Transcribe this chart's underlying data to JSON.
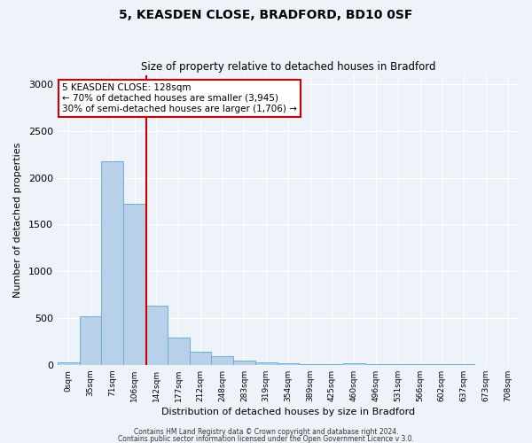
{
  "title_line1": "5, KEASDEN CLOSE, BRADFORD, BD10 0SF",
  "title_line2": "Size of property relative to detached houses in Bradford",
  "xlabel": "Distribution of detached houses by size in Bradford",
  "ylabel": "Number of detached properties",
  "bar_labels": [
    "0sqm",
    "35sqm",
    "71sqm",
    "106sqm",
    "142sqm",
    "177sqm",
    "212sqm",
    "248sqm",
    "283sqm",
    "319sqm",
    "354sqm",
    "389sqm",
    "425sqm",
    "460sqm",
    "496sqm",
    "531sqm",
    "566sqm",
    "602sqm",
    "637sqm",
    "673sqm",
    "708sqm"
  ],
  "bar_values": [
    30,
    520,
    2180,
    1720,
    630,
    290,
    145,
    90,
    50,
    25,
    15,
    10,
    8,
    15,
    5,
    5,
    5,
    5,
    5,
    0,
    0
  ],
  "bar_color": "#b8d0e8",
  "bar_edge_color": "#6baed6",
  "property_line_color": "#cc0000",
  "annotation_text": "5 KEASDEN CLOSE: 128sqm\n← 70% of detached houses are smaller (3,945)\n30% of semi-detached houses are larger (1,706) →",
  "annotation_box_color": "#ffffff",
  "annotation_box_edge": "#cc0000",
  "ylim": [
    0,
    3100
  ],
  "yticks": [
    0,
    500,
    1000,
    1500,
    2000,
    2500,
    3000
  ],
  "footer_line1": "Contains HM Land Registry data © Crown copyright and database right 2024.",
  "footer_line2": "Contains public sector information licensed under the Open Government Licence v 3.0.",
  "background_color": "#eef2f9"
}
